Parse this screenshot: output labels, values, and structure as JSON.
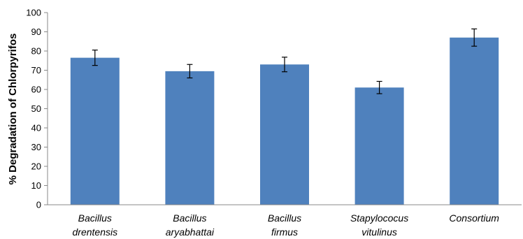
{
  "chart_data": {
    "type": "bar",
    "title": "",
    "xlabel": "",
    "ylabel": "% Degradation of Chlorpyrifos",
    "ylim": [
      0,
      100
    ],
    "yticks": [
      0,
      10,
      20,
      30,
      40,
      50,
      60,
      70,
      80,
      90,
      100
    ],
    "grid": false,
    "legend": "none",
    "bar_color": "#4F81BD",
    "categories": [
      [
        "Bacillus",
        "drentensis"
      ],
      [
        "Bacillus",
        "aryabhattai"
      ],
      [
        "Bacillus",
        "firmus"
      ],
      [
        "Stapylococus",
        "vitulinus"
      ],
      [
        "Consortium"
      ]
    ],
    "values": [
      76.5,
      69.5,
      73,
      61,
      87
    ],
    "errors": [
      4,
      3.5,
      3.8,
      3.2,
      4.5
    ]
  }
}
